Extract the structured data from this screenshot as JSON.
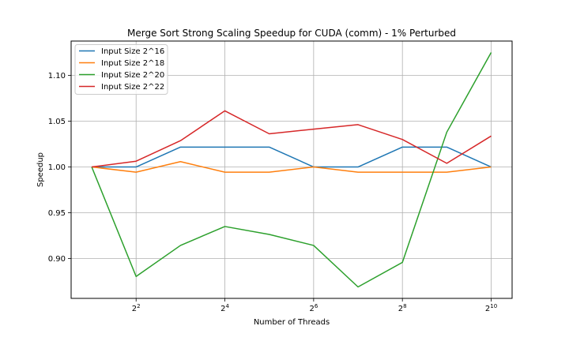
{
  "chart_data": {
    "type": "line",
    "title": "Merge Sort Strong Scaling Speedup for CUDA (comm) - 1% Perturbed",
    "xlabel": "Number of Threads",
    "ylabel": "Speedup",
    "x_scale": "log2",
    "x": [
      2,
      4,
      8,
      16,
      32,
      64,
      128,
      256,
      512,
      1024
    ],
    "xticks": [
      {
        "value": 4,
        "base": "2",
        "exp": "2"
      },
      {
        "value": 16,
        "base": "2",
        "exp": "4"
      },
      {
        "value": 64,
        "base": "2",
        "exp": "6"
      },
      {
        "value": 256,
        "base": "2",
        "exp": "8"
      },
      {
        "value": 1024,
        "base": "2",
        "exp": "10"
      }
    ],
    "yticks": [
      "0.90",
      "0.95",
      "1.00",
      "1.05",
      "1.10"
    ],
    "xlim": [
      1.45,
      1420
    ],
    "ylim": [
      0.8565,
      1.1375
    ],
    "grid": true,
    "legend_position": "top-left",
    "series": [
      {
        "name": "Input Size 2^16",
        "color": "#1f77b4",
        "values": [
          1.0,
          1.0,
          1.0217,
          1.0217,
          1.0217,
          1.0,
          1.0,
          1.0217,
          1.0217,
          1.0
        ]
      },
      {
        "name": "Input Size 2^18",
        "color": "#ff7f0e",
        "values": [
          1.0,
          0.9943,
          1.0058,
          0.9943,
          0.9943,
          1.0,
          0.9943,
          0.9943,
          0.9943,
          1.0
        ]
      },
      {
        "name": "Input Size 2^20",
        "color": "#2ca02c",
        "values": [
          1.0,
          0.8804,
          0.9143,
          0.935,
          0.9263,
          0.9143,
          0.869,
          0.8958,
          1.038,
          1.125
        ]
      },
      {
        "name": "Input Size 2^22",
        "color": "#d62728",
        "values": [
          1.0,
          1.0063,
          1.0287,
          1.0613,
          1.0362,
          1.0413,
          1.0462,
          1.03,
          1.004,
          1.0338
        ]
      }
    ]
  }
}
